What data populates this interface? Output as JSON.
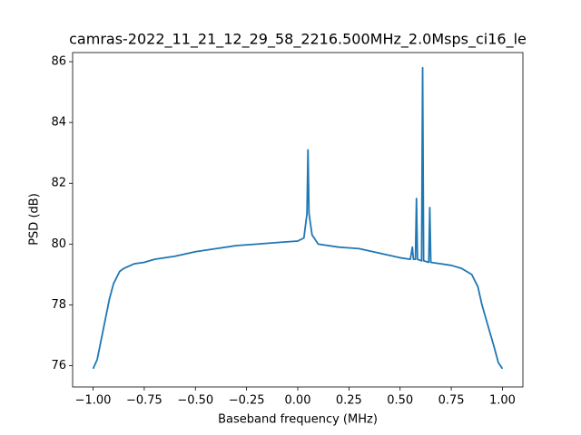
{
  "chart_data": {
    "type": "line",
    "title": "camras-2022_11_21_12_29_58_2216.500MHz_2.0Msps_ci16_le",
    "xlabel": "Baseband frequency (MHz)",
    "ylabel": "PSD (dB)",
    "color": "#1f77b4",
    "x": [
      -1.0,
      -0.98,
      -0.95,
      -0.92,
      -0.9,
      -0.87,
      -0.85,
      -0.8,
      -0.75,
      -0.7,
      -0.6,
      -0.5,
      -0.4,
      -0.3,
      -0.2,
      -0.1,
      0.0,
      0.03,
      0.045,
      0.05,
      0.055,
      0.07,
      0.1,
      0.2,
      0.3,
      0.4,
      0.5,
      0.55,
      0.56,
      0.565,
      0.575,
      0.58,
      0.585,
      0.605,
      0.61,
      0.615,
      0.64,
      0.645,
      0.65,
      0.7,
      0.75,
      0.8,
      0.85,
      0.88,
      0.9,
      0.93,
      0.96,
      0.98,
      1.0
    ],
    "values": [
      75.9,
      76.2,
      77.2,
      78.2,
      78.7,
      79.1,
      79.2,
      79.35,
      79.4,
      79.5,
      79.6,
      79.75,
      79.85,
      79.95,
      80.0,
      80.05,
      80.1,
      80.2,
      81.0,
      83.1,
      81.0,
      80.3,
      80.0,
      79.9,
      79.85,
      79.7,
      79.55,
      79.5,
      79.9,
      79.5,
      79.5,
      81.5,
      79.5,
      79.45,
      85.8,
      79.45,
      79.4,
      81.2,
      79.4,
      79.35,
      79.3,
      79.2,
      79.0,
      78.6,
      78.0,
      77.3,
      76.6,
      76.1,
      75.9
    ],
    "xlim": [
      -1.1,
      1.1
    ],
    "ylim": [
      75.3,
      86.3
    ],
    "xticks": [
      {
        "value": -1.0,
        "label": "−1.00"
      },
      {
        "value": -0.75,
        "label": "−0.75"
      },
      {
        "value": -0.5,
        "label": "−0.50"
      },
      {
        "value": -0.25,
        "label": "−0.25"
      },
      {
        "value": 0.0,
        "label": "0.00"
      },
      {
        "value": 0.25,
        "label": "0.25"
      },
      {
        "value": 0.5,
        "label": "0.50"
      },
      {
        "value": 0.75,
        "label": "0.75"
      },
      {
        "value": 1.0,
        "label": "1.00"
      }
    ],
    "yticks": [
      76,
      78,
      80,
      82,
      84,
      86
    ]
  }
}
